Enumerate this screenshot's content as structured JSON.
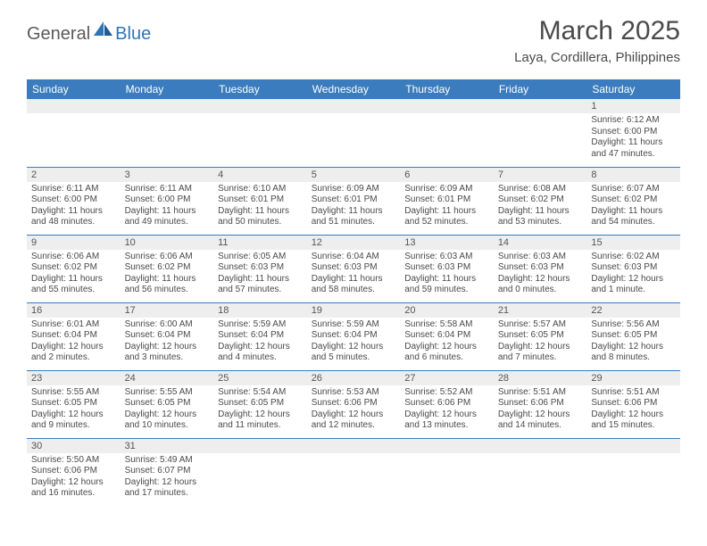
{
  "brand": {
    "part1": "General",
    "part2": "Blue"
  },
  "title": "March 2025",
  "location": "Laya, Cordillera, Philippines",
  "colors": {
    "header_bg": "#3a7cbd",
    "header_text": "#ffffff",
    "daynum_bg": "#eeeeee",
    "row_divider": "#3a7cbd",
    "text": "#4a4a4a",
    "brand_accent": "#2f75b5"
  },
  "weekdays": [
    "Sunday",
    "Monday",
    "Tuesday",
    "Wednesday",
    "Thursday",
    "Friday",
    "Saturday"
  ],
  "weeks": [
    [
      null,
      null,
      null,
      null,
      null,
      null,
      {
        "n": "1",
        "sr": "Sunrise: 6:12 AM",
        "ss": "Sunset: 6:00 PM",
        "dl": "Daylight: 11 hours and 47 minutes."
      }
    ],
    [
      {
        "n": "2",
        "sr": "Sunrise: 6:11 AM",
        "ss": "Sunset: 6:00 PM",
        "dl": "Daylight: 11 hours and 48 minutes."
      },
      {
        "n": "3",
        "sr": "Sunrise: 6:11 AM",
        "ss": "Sunset: 6:00 PM",
        "dl": "Daylight: 11 hours and 49 minutes."
      },
      {
        "n": "4",
        "sr": "Sunrise: 6:10 AM",
        "ss": "Sunset: 6:01 PM",
        "dl": "Daylight: 11 hours and 50 minutes."
      },
      {
        "n": "5",
        "sr": "Sunrise: 6:09 AM",
        "ss": "Sunset: 6:01 PM",
        "dl": "Daylight: 11 hours and 51 minutes."
      },
      {
        "n": "6",
        "sr": "Sunrise: 6:09 AM",
        "ss": "Sunset: 6:01 PM",
        "dl": "Daylight: 11 hours and 52 minutes."
      },
      {
        "n": "7",
        "sr": "Sunrise: 6:08 AM",
        "ss": "Sunset: 6:02 PM",
        "dl": "Daylight: 11 hours and 53 minutes."
      },
      {
        "n": "8",
        "sr": "Sunrise: 6:07 AM",
        "ss": "Sunset: 6:02 PM",
        "dl": "Daylight: 11 hours and 54 minutes."
      }
    ],
    [
      {
        "n": "9",
        "sr": "Sunrise: 6:06 AM",
        "ss": "Sunset: 6:02 PM",
        "dl": "Daylight: 11 hours and 55 minutes."
      },
      {
        "n": "10",
        "sr": "Sunrise: 6:06 AM",
        "ss": "Sunset: 6:02 PM",
        "dl": "Daylight: 11 hours and 56 minutes."
      },
      {
        "n": "11",
        "sr": "Sunrise: 6:05 AM",
        "ss": "Sunset: 6:03 PM",
        "dl": "Daylight: 11 hours and 57 minutes."
      },
      {
        "n": "12",
        "sr": "Sunrise: 6:04 AM",
        "ss": "Sunset: 6:03 PM",
        "dl": "Daylight: 11 hours and 58 minutes."
      },
      {
        "n": "13",
        "sr": "Sunrise: 6:03 AM",
        "ss": "Sunset: 6:03 PM",
        "dl": "Daylight: 11 hours and 59 minutes."
      },
      {
        "n": "14",
        "sr": "Sunrise: 6:03 AM",
        "ss": "Sunset: 6:03 PM",
        "dl": "Daylight: 12 hours and 0 minutes."
      },
      {
        "n": "15",
        "sr": "Sunrise: 6:02 AM",
        "ss": "Sunset: 6:03 PM",
        "dl": "Daylight: 12 hours and 1 minute."
      }
    ],
    [
      {
        "n": "16",
        "sr": "Sunrise: 6:01 AM",
        "ss": "Sunset: 6:04 PM",
        "dl": "Daylight: 12 hours and 2 minutes."
      },
      {
        "n": "17",
        "sr": "Sunrise: 6:00 AM",
        "ss": "Sunset: 6:04 PM",
        "dl": "Daylight: 12 hours and 3 minutes."
      },
      {
        "n": "18",
        "sr": "Sunrise: 5:59 AM",
        "ss": "Sunset: 6:04 PM",
        "dl": "Daylight: 12 hours and 4 minutes."
      },
      {
        "n": "19",
        "sr": "Sunrise: 5:59 AM",
        "ss": "Sunset: 6:04 PM",
        "dl": "Daylight: 12 hours and 5 minutes."
      },
      {
        "n": "20",
        "sr": "Sunrise: 5:58 AM",
        "ss": "Sunset: 6:04 PM",
        "dl": "Daylight: 12 hours and 6 minutes."
      },
      {
        "n": "21",
        "sr": "Sunrise: 5:57 AM",
        "ss": "Sunset: 6:05 PM",
        "dl": "Daylight: 12 hours and 7 minutes."
      },
      {
        "n": "22",
        "sr": "Sunrise: 5:56 AM",
        "ss": "Sunset: 6:05 PM",
        "dl": "Daylight: 12 hours and 8 minutes."
      }
    ],
    [
      {
        "n": "23",
        "sr": "Sunrise: 5:55 AM",
        "ss": "Sunset: 6:05 PM",
        "dl": "Daylight: 12 hours and 9 minutes."
      },
      {
        "n": "24",
        "sr": "Sunrise: 5:55 AM",
        "ss": "Sunset: 6:05 PM",
        "dl": "Daylight: 12 hours and 10 minutes."
      },
      {
        "n": "25",
        "sr": "Sunrise: 5:54 AM",
        "ss": "Sunset: 6:05 PM",
        "dl": "Daylight: 12 hours and 11 minutes."
      },
      {
        "n": "26",
        "sr": "Sunrise: 5:53 AM",
        "ss": "Sunset: 6:06 PM",
        "dl": "Daylight: 12 hours and 12 minutes."
      },
      {
        "n": "27",
        "sr": "Sunrise: 5:52 AM",
        "ss": "Sunset: 6:06 PM",
        "dl": "Daylight: 12 hours and 13 minutes."
      },
      {
        "n": "28",
        "sr": "Sunrise: 5:51 AM",
        "ss": "Sunset: 6:06 PM",
        "dl": "Daylight: 12 hours and 14 minutes."
      },
      {
        "n": "29",
        "sr": "Sunrise: 5:51 AM",
        "ss": "Sunset: 6:06 PM",
        "dl": "Daylight: 12 hours and 15 minutes."
      }
    ],
    [
      {
        "n": "30",
        "sr": "Sunrise: 5:50 AM",
        "ss": "Sunset: 6:06 PM",
        "dl": "Daylight: 12 hours and 16 minutes."
      },
      {
        "n": "31",
        "sr": "Sunrise: 5:49 AM",
        "ss": "Sunset: 6:07 PM",
        "dl": "Daylight: 12 hours and 17 minutes."
      },
      null,
      null,
      null,
      null,
      null
    ]
  ]
}
